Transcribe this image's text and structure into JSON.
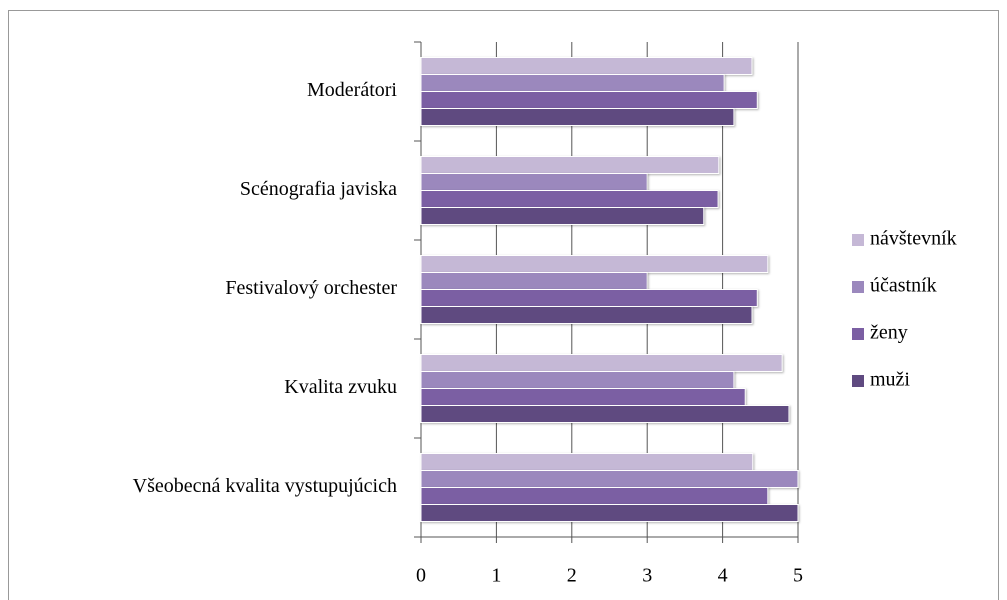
{
  "chart_data": {
    "type": "bar",
    "orientation": "horizontal",
    "categories": [
      "Moderátori",
      "Scénografia javiska",
      "Festivalový orchester",
      "Kvalita zvuku",
      "Všeobecná kvalita vystupujúcich"
    ],
    "series": [
      {
        "name": "návštevník",
        "color": "#c5b8d6",
        "values": [
          4.39,
          3.95,
          4.6,
          4.79,
          4.4
        ]
      },
      {
        "name": "účastník",
        "color": "#9b88bd",
        "values": [
          4.02,
          3.0,
          3.0,
          4.15,
          5
        ]
      },
      {
        "name": "ženy",
        "color": "#7b5fa3",
        "values": [
          4.46,
          3.94,
          4.46,
          4.3,
          4.6
        ]
      },
      {
        "name": "muži",
        "color": "#5f4a80",
        "values": [
          4.15,
          3.75,
          4.39,
          4.88,
          5
        ]
      }
    ],
    "xlim": [
      0,
      5
    ],
    "xticks": [
      0,
      1,
      2,
      3,
      4,
      5
    ],
    "grid": true,
    "legend": "right"
  }
}
